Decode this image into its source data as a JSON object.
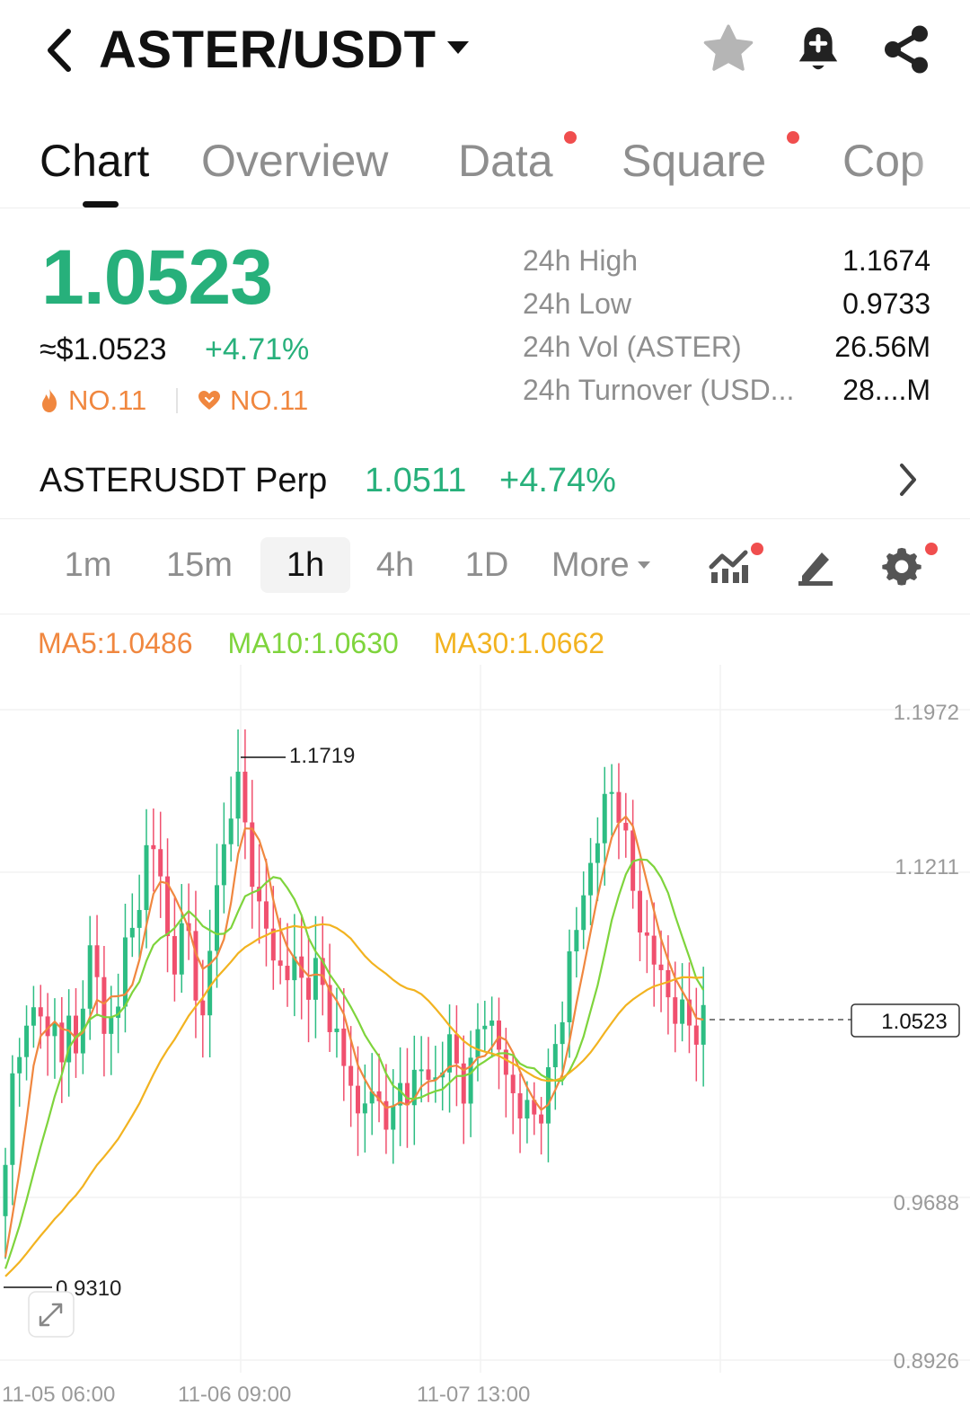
{
  "header": {
    "pair": "ASTER/USDT",
    "icons": [
      "back-chevron-icon",
      "caret-down-icon",
      "star-icon",
      "bell-plus-icon",
      "share-icon"
    ]
  },
  "tabs": [
    {
      "label": "Chart",
      "active": true,
      "dot": false
    },
    {
      "label": "Overview",
      "active": false,
      "dot": false
    },
    {
      "label": "Data",
      "active": false,
      "dot": true
    },
    {
      "label": "Square",
      "active": false,
      "dot": true
    },
    {
      "label": "Cop",
      "active": false,
      "dot": false
    }
  ],
  "ticker": {
    "last_price": "1.0523",
    "usd_price": "≈$1.0523",
    "change_pct": "+4.71%",
    "rank_hot": "NO.11",
    "rank_fav": "NO.11"
  },
  "stats": [
    {
      "label": "24h High",
      "value": "1.1674"
    },
    {
      "label": "24h Low",
      "value": "0.9733"
    },
    {
      "label": "24h Vol (ASTER)",
      "value": "26.56M"
    },
    {
      "label": "24h Turnover (USD...",
      "value": "28....M"
    }
  ],
  "perp": {
    "name": "ASTERUSDT Perp",
    "price": "1.0511",
    "change": "+4.74%"
  },
  "timeframes": [
    {
      "label": "1m",
      "active": false
    },
    {
      "label": "15m",
      "active": false
    },
    {
      "label": "1h",
      "active": true
    },
    {
      "label": "4h",
      "active": false
    },
    {
      "label": "1D",
      "active": false
    }
  ],
  "more_label": "More",
  "ma": {
    "ma5": "MA5:1.0486",
    "ma10": "MA10:1.0630",
    "ma30": "MA30:1.0662"
  },
  "colors": {
    "up": "#27b07b",
    "candle_up": "#2dbd83",
    "candle_down": "#f0506e",
    "ma5": "#f0873f",
    "ma10": "#7ed43c",
    "ma30": "#f2b320",
    "rank": "#f0873f"
  },
  "chart_data": {
    "type": "candlestick",
    "interval": "1h",
    "y_axis_labels": [
      "1.1972",
      "1.1211",
      "0.9688",
      "0.8926"
    ],
    "ylim": [
      0.8926,
      1.1972
    ],
    "x_axis_labels": [
      "11-05 06:00",
      "11-06 09:00",
      "11-07 13:00"
    ],
    "last_price_marker": "1.0523",
    "high_marker": "1.1719",
    "low_marker": "0.9310",
    "close_path": [
      0.98,
      1.03,
      1.05,
      1.04,
      1.07,
      1.04,
      1.05,
      1.03,
      1.06,
      1.03,
      1.08,
      1.09,
      1.04,
      1.05,
      1.07,
      1.1,
      1.09,
      1.13,
      1.14,
      1.11,
      1.08,
      1.085,
      1.1,
      1.07,
      1.05,
      1.09,
      1.12,
      1.14,
      1.17,
      1.145,
      1.125,
      1.1,
      1.09,
      1.08,
      1.07,
      1.08,
      1.07,
      1.07,
      1.075,
      1.06,
      1.05,
      1.03,
      1.025,
      1.005,
      1.02,
      1.01,
      1.015,
      1.0,
      1.02,
      1.02,
      1.025,
      1.03,
      1.02,
      1.03,
      1.04,
      1.03,
      1.02,
      1.03,
      1.06,
      1.05,
      1.04,
      1.025,
      1.015,
      1.01,
      1.005,
      1.01,
      1.02,
      1.04,
      1.06,
      1.09,
      1.1,
      1.12,
      1.14,
      1.15,
      1.16,
      1.15,
      1.12,
      1.1,
      1.09,
      1.08,
      1.07,
      1.06,
      1.055,
      1.05,
      1.048,
      1.052
    ]
  }
}
